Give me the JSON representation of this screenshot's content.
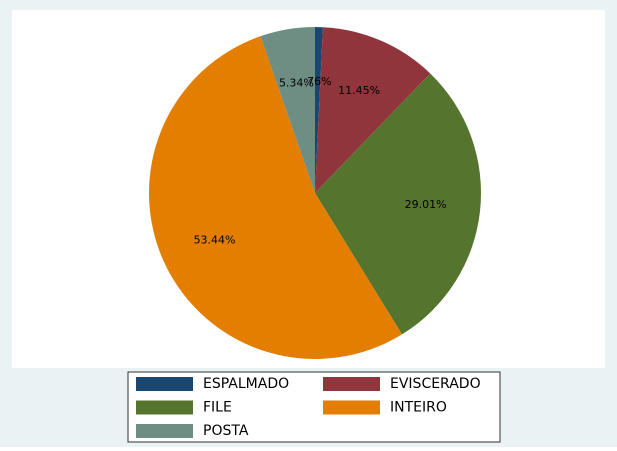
{
  "chart_data": {
    "type": "pie",
    "categories": [
      "ESPALMADO",
      "EVISCERADO",
      "FILE",
      "INTEIRO",
      "POSTA"
    ],
    "values": [
      0.76,
      11.45,
      29.01,
      53.44,
      5.34
    ],
    "value_labels": [
      ".76%",
      "11.45%",
      "29.01%",
      "53.44%",
      "5.34%"
    ],
    "colors": [
      "#1a476f",
      "#90353b",
      "#55752f",
      "#e37e00",
      "#6e8e84"
    ]
  }
}
